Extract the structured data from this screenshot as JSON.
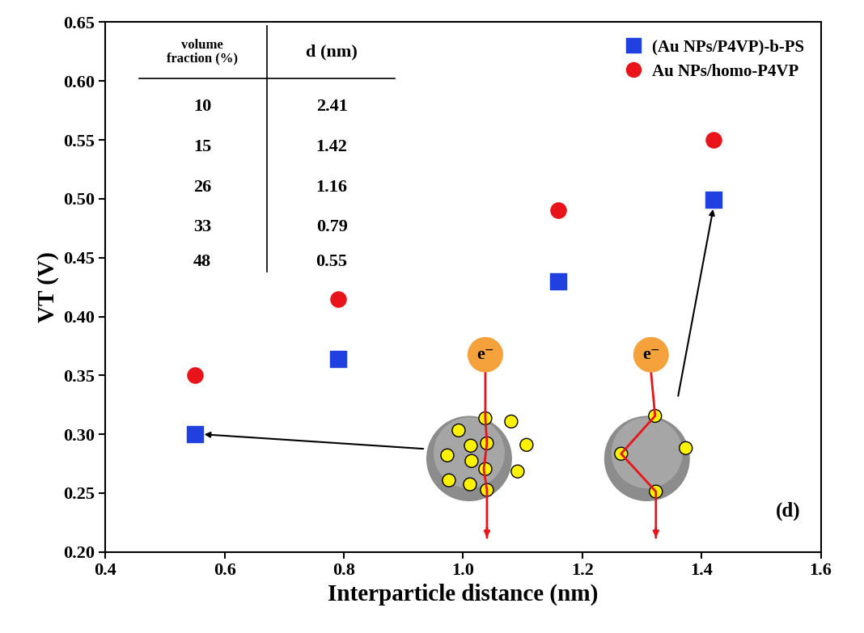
{
  "chart_data": {
    "type": "scatter",
    "x_label": "Interparticle distance (nm)",
    "y_label": "VT (V)",
    "series": [
      {
        "name": "(Au NPs/P4VP)-b-PS",
        "color": "#2040e0",
        "marker": "square",
        "x": [
          0.55,
          0.79,
          1.16,
          1.42
        ],
        "values": [
          0.3,
          0.364,
          0.43,
          0.499
        ]
      },
      {
        "name": "Au NPs/homo-P4VP",
        "color": "#e8141a",
        "marker": "circle",
        "x": [
          0.55,
          0.79,
          1.16,
          1.42
        ],
        "values": [
          0.35,
          0.415,
          0.49,
          0.55
        ]
      }
    ],
    "xlim": [
      0.4,
      1.6
    ],
    "xticks": [
      0.4,
      0.6,
      0.8,
      1.0,
      1.2,
      1.4,
      1.6
    ],
    "ylim": [
      0.2,
      0.65
    ],
    "yticks": [
      {
        "value": 0.2,
        "label": "0.20"
      },
      {
        "value": 0.25,
        "label": "0.25"
      },
      {
        "value": 0.3,
        "label": "0.30"
      },
      {
        "value": 0.35,
        "label": "0.35"
      },
      {
        "value": 0.4,
        "label": "0.40"
      },
      {
        "value": 0.45,
        "label": "0.45"
      },
      {
        "value": 0.5,
        "label": "0.50"
      },
      {
        "value": 0.55,
        "label": "0.55"
      },
      {
        "value": 0.6,
        "label": "0.60"
      },
      {
        "value": 0.65,
        "label": "0.65"
      }
    ],
    "legend": "upper right",
    "table": {
      "columns": [
        "volume\nfraction (%)",
        "d (nm)"
      ],
      "rows": [
        [
          10,
          2.41
        ],
        [
          15,
          1.42
        ],
        [
          26,
          1.16
        ],
        [
          33,
          0.79
        ],
        [
          48,
          0.55
        ]
      ]
    },
    "annotations": [
      "e⁻",
      "e⁻",
      "(d)"
    ]
  }
}
